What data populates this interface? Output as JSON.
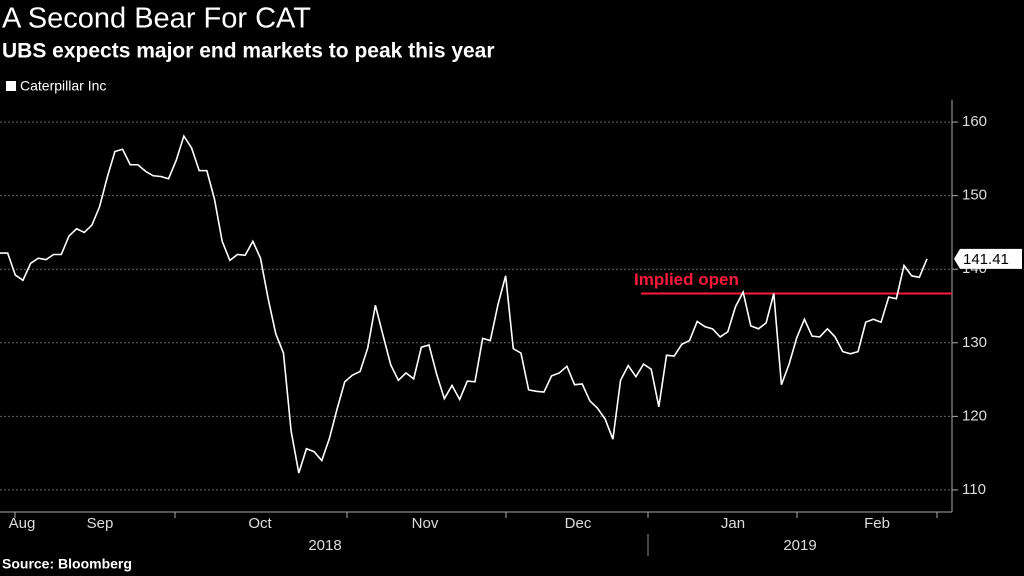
{
  "chart_data": {
    "type": "line",
    "title": "A Second Bear For CAT",
    "subtitle": "UBS expects major end markets to peak this year",
    "source": "Source: Bloomberg",
    "series": [
      {
        "name": "Caterpillar Inc",
        "color": "#ffffff",
        "values": [
          142.2,
          142.2,
          139.2,
          138.5,
          140.8,
          141.5,
          141.3,
          142.0,
          142.0,
          144.5,
          145.5,
          145.0,
          146.0,
          148.5,
          152.5,
          156.0,
          156.3,
          154.2,
          154.2,
          153.3,
          152.7,
          152.6,
          152.3,
          154.8,
          158.1,
          156.5,
          153.4,
          153.4,
          149.5,
          143.8,
          141.2,
          142.0,
          141.9,
          143.8,
          141.5,
          136.0,
          131.2,
          128.6,
          118.0,
          112.3,
          115.6,
          115.2,
          114.0,
          117.0,
          121.0,
          124.7,
          125.6,
          126.1,
          129.3,
          135.1,
          131.0,
          127.0,
          124.9,
          125.9,
          125.1,
          129.4,
          129.7,
          125.7,
          122.4,
          124.2,
          122.3,
          124.8,
          124.7,
          130.6,
          130.3,
          135.2,
          139.1,
          129.2,
          128.6,
          123.6,
          123.4,
          123.3,
          125.5,
          125.9,
          126.8,
          124.3,
          124.4,
          122.1,
          121.1,
          119.6,
          116.9,
          124.9,
          126.9,
          125.4,
          127.1,
          126.4,
          121.3,
          128.3,
          128.2,
          129.8,
          130.3,
          132.9,
          132.2,
          131.9,
          130.8,
          131.5,
          134.9,
          136.9,
          132.3,
          131.9,
          132.7,
          136.7,
          124.3,
          127.1,
          130.7,
          133.2,
          130.9,
          130.8,
          131.9,
          130.8,
          128.8,
          128.5,
          128.8,
          132.8,
          133.2,
          132.8,
          136.2,
          136.0,
          140.5,
          139.1,
          138.9,
          141.41
        ]
      }
    ],
    "x_labels": [
      "Aug",
      "Sep",
      "Oct",
      "Nov",
      "Dec",
      "Jan",
      "Feb"
    ],
    "year_labels": [
      "2018",
      "2019"
    ],
    "annotation": {
      "label": "Implied open",
      "value": 136.7,
      "color": "#ff1a3c"
    },
    "ylim": [
      107,
      163
    ],
    "yticks": [
      110,
      120,
      130,
      140,
      150,
      160
    ],
    "grid": true
  }
}
